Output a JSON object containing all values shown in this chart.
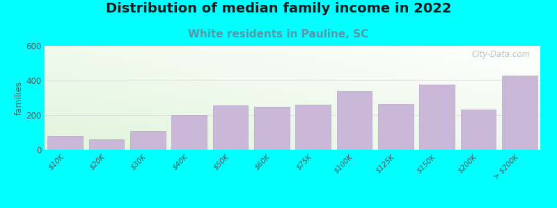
{
  "title": "Distribution of median family income in 2022",
  "subtitle": "White residents in Pauline, SC",
  "categories": [
    "$10K",
    "$20K",
    "$30K",
    "$40K",
    "$50K",
    "$60K",
    "$75K",
    "$100K",
    "$125K",
    "$150K",
    "$200K",
    "> $200K"
  ],
  "values": [
    80,
    60,
    110,
    200,
    255,
    250,
    260,
    340,
    265,
    375,
    232,
    430
  ],
  "bar_color": "#c9b8d8",
  "bar_edge_color": "#b8a5c8",
  "background_color": "#00ffff",
  "title_fontsize": 14,
  "subtitle_fontsize": 11,
  "subtitle_color": "#5599aa",
  "ylabel": "families",
  "ylim": [
    0,
    600
  ],
  "yticks": [
    0,
    200,
    400,
    600
  ],
  "grid_color": "#dddddd",
  "watermark": "City-Data.com"
}
